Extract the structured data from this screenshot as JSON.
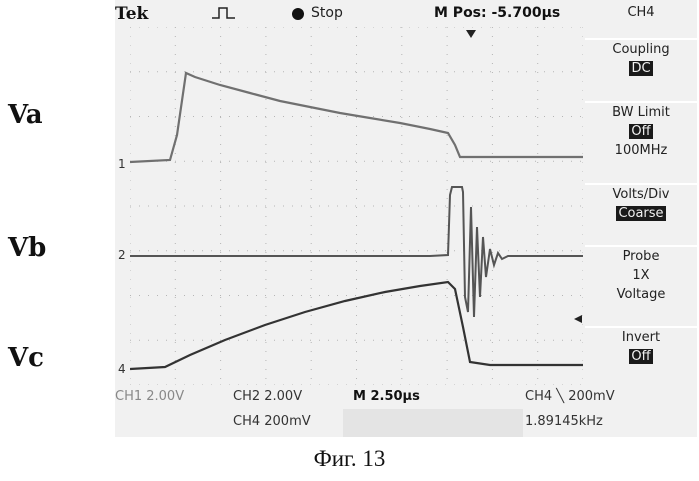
{
  "figure": {
    "labels": [
      "Va",
      "Vb",
      "Vc"
    ],
    "caption": "Фиг. 13"
  },
  "header": {
    "brand": "Tek",
    "trigger_icon": "pulse-icon",
    "run_state": "Stop",
    "m_pos": "M Pos: -5.700μs"
  },
  "menu": {
    "title": "CH4",
    "items": [
      {
        "label": "Coupling",
        "value": "DC"
      },
      {
        "label": "BW Limit",
        "value": "Off",
        "extra": "100MHz"
      },
      {
        "label": "Volts/Div",
        "value": "Coarse"
      },
      {
        "label": "Probe",
        "line2": "1X",
        "line3": "Voltage"
      },
      {
        "label": "Invert",
        "value": "Off"
      }
    ]
  },
  "status": {
    "ch1": "CH1  2.00V",
    "ch2": "CH2  2.00V",
    "ch4": "CH4  200mV",
    "timebase": "M 2.50μs",
    "trigger": "CH4 ╲ 200mV",
    "frequency": "1.89145kHz"
  },
  "channel_markers": [
    "1",
    "2",
    "4"
  ],
  "colors": {
    "trace": "#6e6e6e",
    "grid": "#b5b5b5",
    "screen_bg": "#f1f1f1"
  }
}
